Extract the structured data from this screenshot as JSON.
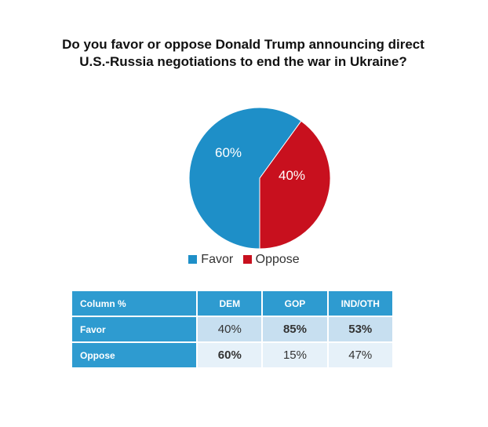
{
  "chart_data": [
    {
      "type": "pie",
      "title": "Do you favor or oppose Donald Trump announcing direct U.S.-Russia negotiations to end the war in Ukraine?",
      "title_lines": [
        "Do you favor or oppose Donald Trump announcing direct",
        "U.S.-Russia negotiations to end the war in Ukraine?"
      ],
      "slices": [
        {
          "label": "Favor",
          "value": 60,
          "display": "60%",
          "color": "#1e8fc8"
        },
        {
          "label": "Oppose",
          "value": 40,
          "display": "40%",
          "color": "#c8101e"
        }
      ],
      "legend_position": "bottom"
    },
    {
      "type": "table",
      "columns": [
        "Column %",
        "DEM",
        "GOP",
        "IND/OTH"
      ],
      "rows": [
        {
          "label": "Favor",
          "values": [
            "40%",
            "85%",
            "53%"
          ],
          "bold": [
            false,
            true,
            true
          ]
        },
        {
          "label": "Oppose",
          "values": [
            "60%",
            "15%",
            "47%"
          ],
          "bold": [
            true,
            false,
            false
          ]
        }
      ]
    }
  ]
}
